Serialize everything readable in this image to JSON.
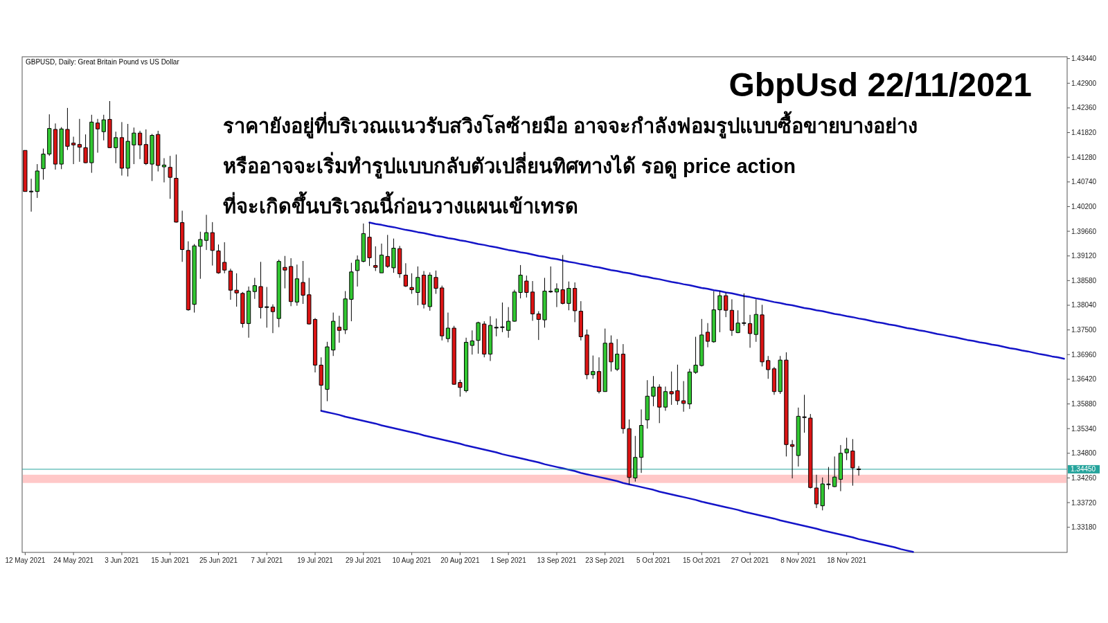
{
  "chart_data": {
    "type": "candlestick",
    "title": "GbpUsd 22/11/2021",
    "subtitle": "ราคายังอยู่ที่บริเวณแนวรับสวิงโลซ้ายมือ อาจจะกำลังฟอมรูปแบบซื้อขายบางอย่าง\nหรืออาจจะเริ่มทำรูปแบบกลับตัวเปลี่ยนทิศทางได้ รอดู price action\nที่จะเกิดขึ้นบริเวณนี้ก่อนวางแผนเข้าเทรด",
    "annotations": [
      "GBPUSD, Daily:  Great Britain Pound vs US Dollar"
    ],
    "categories": [
      "12 May 2021",
      null,
      null,
      null,
      null,
      null,
      null,
      null,
      "24 May 2021",
      null,
      null,
      null,
      null,
      null,
      null,
      null,
      "3 Jun 2021",
      null,
      null,
      null,
      null,
      null,
      null,
      null,
      "15 Jun 2021",
      null,
      null,
      null,
      null,
      null,
      null,
      null,
      "25 Jun 2021",
      null,
      null,
      null,
      null,
      null,
      null,
      null,
      "7 Jul 2021",
      null,
      null,
      null,
      null,
      null,
      null,
      null,
      "19 Jul 2021",
      null,
      null,
      null,
      null,
      null,
      null,
      null,
      "29 Jul 2021",
      null,
      null,
      null,
      null,
      null,
      null,
      null,
      "10 Aug 2021",
      null,
      null,
      null,
      null,
      null,
      null,
      null,
      "20 Aug 2021",
      null,
      null,
      null,
      null,
      null,
      null,
      null,
      "1 Sep 2021",
      null,
      null,
      null,
      null,
      null,
      null,
      null,
      "13 Sep 2021",
      null,
      null,
      null,
      null,
      null,
      null,
      null,
      "23 Sep 2021",
      null,
      null,
      null,
      null,
      null,
      null,
      null,
      "5 Oct 2021",
      null,
      null,
      null,
      null,
      null,
      null,
      null,
      "15 Oct 2021",
      null,
      null,
      null,
      null,
      null,
      null,
      null,
      "27 Oct 2021",
      null,
      null,
      null,
      null,
      null,
      null,
      null,
      "8 Nov 2021",
      null,
      null,
      null,
      null,
      null,
      null,
      null,
      "18 Nov 2021",
      null,
      null,
      null,
      null,
      null,
      null,
      null,
      null,
      null,
      null,
      null,
      null,
      null,
      null,
      null,
      null,
      null,
      null,
      null,
      null,
      null,
      null,
      null,
      null,
      null,
      null,
      null,
      null,
      null,
      null,
      null,
      null,
      null,
      null,
      null,
      null
    ],
    "ohlc": [
      [
        1.4143,
        1.4143,
        1.4053,
        1.4053
      ],
      [
        1.4053,
        1.4081,
        1.4009,
        1.4053
      ],
      [
        1.4053,
        1.4113,
        1.4039,
        1.4098
      ],
      [
        1.4103,
        1.4147,
        1.4079,
        1.4135
      ],
      [
        1.4135,
        1.4222,
        1.4131,
        1.4191
      ],
      [
        1.4189,
        1.4202,
        1.4101,
        1.4113
      ],
      [
        1.4113,
        1.4194,
        1.4102,
        1.419
      ],
      [
        1.4189,
        1.4236,
        1.4144,
        1.4152
      ],
      [
        1.4159,
        1.4173,
        1.4113,
        1.4155
      ],
      [
        1.4156,
        1.4212,
        1.4118,
        1.415
      ],
      [
        1.4149,
        1.4178,
        1.4115,
        1.4116
      ],
      [
        1.4116,
        1.4221,
        1.4094,
        1.4205
      ],
      [
        1.4203,
        1.4212,
        1.4138,
        1.419
      ],
      [
        1.4184,
        1.4221,
        1.4165,
        1.421
      ],
      [
        1.4211,
        1.4251,
        1.4148,
        1.4149
      ],
      [
        1.4149,
        1.4184,
        1.4115,
        1.4171
      ],
      [
        1.4171,
        1.4205,
        1.4088,
        1.4104
      ],
      [
        1.4104,
        1.4201,
        1.4086,
        1.4163
      ],
      [
        1.4155,
        1.4193,
        1.4113,
        1.4181
      ],
      [
        1.4181,
        1.4186,
        1.4124,
        1.4155
      ],
      [
        1.4156,
        1.4189,
        1.4111,
        1.4114
      ],
      [
        1.4113,
        1.4179,
        1.4076,
        1.4176
      ],
      [
        1.4178,
        1.4186,
        1.4097,
        1.411
      ],
      [
        1.4107,
        1.4126,
        1.4073,
        1.4111
      ],
      [
        1.4106,
        1.4131,
        1.4037,
        1.4084
      ],
      [
        1.4082,
        1.4134,
        1.3985,
        1.3986
      ],
      [
        1.3985,
        1.4011,
        1.3899,
        1.3926
      ],
      [
        1.3924,
        1.3944,
        1.3792,
        1.3794
      ],
      [
        1.3806,
        1.3938,
        1.3788,
        1.3934
      ],
      [
        1.3933,
        1.3965,
        1.3862,
        1.3948
      ],
      [
        1.3946,
        1.4002,
        1.3925,
        1.3963
      ],
      [
        1.3963,
        1.3986,
        1.3891,
        1.3924
      ],
      [
        1.3923,
        1.3937,
        1.3873,
        1.3875
      ],
      [
        1.3898,
        1.3942,
        1.3874,
        1.3881
      ],
      [
        1.3879,
        1.3884,
        1.3816,
        1.3837
      ],
      [
        1.3837,
        1.3874,
        1.3801,
        1.3831
      ],
      [
        1.383,
        1.3833,
        1.3755,
        1.3764
      ],
      [
        1.3764,
        1.3845,
        1.3733,
        1.3835
      ],
      [
        1.3834,
        1.3864,
        1.3818,
        1.3847
      ],
      [
        1.3845,
        1.3899,
        1.3775,
        1.3799
      ],
      [
        1.38,
        1.3844,
        1.3755,
        1.38
      ],
      [
        1.38,
        1.3806,
        1.3743,
        1.379
      ],
      [
        1.3775,
        1.3904,
        1.3756,
        1.39
      ],
      [
        1.3887,
        1.3912,
        1.3841,
        1.3881
      ],
      [
        1.3889,
        1.3907,
        1.3802,
        1.3812
      ],
      [
        1.3811,
        1.3893,
        1.3803,
        1.3862
      ],
      [
        1.3854,
        1.3901,
        1.3807,
        1.3826
      ],
      [
        1.3827,
        1.3864,
        1.3762,
        1.3763
      ],
      [
        1.3773,
        1.3776,
        1.3657,
        1.3673
      ],
      [
        1.3673,
        1.369,
        1.3573,
        1.3629
      ],
      [
        1.362,
        1.3724,
        1.3594,
        1.3713
      ],
      [
        1.3706,
        1.3788,
        1.3693,
        1.3769
      ],
      [
        1.3756,
        1.3781,
        1.3722,
        1.3749
      ],
      [
        1.375,
        1.3835,
        1.3741,
        1.3818
      ],
      [
        1.3817,
        1.3897,
        1.3769,
        1.3877
      ],
      [
        1.388,
        1.3913,
        1.3845,
        1.3903
      ],
      [
        1.39,
        1.3983,
        1.3898,
        1.3961
      ],
      [
        1.3953,
        1.3986,
        1.389,
        1.3908
      ],
      [
        1.3891,
        1.3933,
        1.3879,
        1.3887
      ],
      [
        1.3875,
        1.3939,
        1.3875,
        1.3914
      ],
      [
        1.3911,
        1.3958,
        1.3886,
        1.3889
      ],
      [
        1.3886,
        1.395,
        1.3875,
        1.3929
      ],
      [
        1.3928,
        1.3934,
        1.3864,
        1.3873
      ],
      [
        1.387,
        1.3896,
        1.3844,
        1.3846
      ],
      [
        1.3843,
        1.3874,
        1.3829,
        1.3838
      ],
      [
        1.3832,
        1.3889,
        1.3804,
        1.3865
      ],
      [
        1.387,
        1.3879,
        1.3797,
        1.3806
      ],
      [
        1.3801,
        1.3876,
        1.3792,
        1.387
      ],
      [
        1.3865,
        1.388,
        1.3829,
        1.3841
      ],
      [
        1.3842,
        1.3847,
        1.3727,
        1.3737
      ],
      [
        1.3731,
        1.3788,
        1.3723,
        1.3754
      ],
      [
        1.3754,
        1.3759,
        1.363,
        1.3631
      ],
      [
        1.3635,
        1.3641,
        1.3604,
        1.3624
      ],
      [
        1.3617,
        1.3733,
        1.3613,
        1.3723
      ],
      [
        1.3716,
        1.3749,
        1.3696,
        1.3726
      ],
      [
        1.3727,
        1.3768,
        1.3698,
        1.3766
      ],
      [
        1.3763,
        1.3769,
        1.369,
        1.3697
      ],
      [
        1.3697,
        1.378,
        1.3682,
        1.376
      ],
      [
        1.3755,
        1.3775,
        1.3736,
        1.3755
      ],
      [
        1.3756,
        1.381,
        1.3745,
        1.3756
      ],
      [
        1.3749,
        1.38,
        1.3733,
        1.3769
      ],
      [
        1.3769,
        1.3838,
        1.3768,
        1.3833
      ],
      [
        1.3832,
        1.3892,
        1.3819,
        1.387
      ],
      [
        1.3857,
        1.3869,
        1.3821,
        1.3832
      ],
      [
        1.3833,
        1.3857,
        1.377,
        1.3785
      ],
      [
        1.3785,
        1.3791,
        1.3728,
        1.3773
      ],
      [
        1.3772,
        1.3864,
        1.3755,
        1.3835
      ],
      [
        1.3834,
        1.3889,
        1.3831,
        1.3834
      ],
      [
        1.3833,
        1.3852,
        1.38,
        1.384
      ],
      [
        1.3838,
        1.3914,
        1.3806,
        1.3808
      ],
      [
        1.3808,
        1.3856,
        1.3793,
        1.3841
      ],
      [
        1.3841,
        1.3854,
        1.3767,
        1.3792
      ],
      [
        1.3791,
        1.3813,
        1.3727,
        1.3735
      ],
      [
        1.3739,
        1.3751,
        1.3642,
        1.3652
      ],
      [
        1.3652,
        1.3694,
        1.3643,
        1.3659
      ],
      [
        1.3659,
        1.369,
        1.3611,
        1.3615
      ],
      [
        1.3615,
        1.3753,
        1.3615,
        1.3721
      ],
      [
        1.3721,
        1.3738,
        1.3659,
        1.368
      ],
      [
        1.3664,
        1.373,
        1.366,
        1.3697
      ],
      [
        1.3697,
        1.3719,
        1.3523,
        1.3534
      ],
      [
        1.3534,
        1.3554,
        1.3412,
        1.3427
      ],
      [
        1.3426,
        1.3518,
        1.3418,
        1.3471
      ],
      [
        1.3471,
        1.3576,
        1.3437,
        1.3541
      ],
      [
        1.3553,
        1.364,
        1.3534,
        1.3605
      ],
      [
        1.3605,
        1.3649,
        1.3583,
        1.3625
      ],
      [
        1.3625,
        1.3631,
        1.3546,
        1.3581
      ],
      [
        1.3581,
        1.3626,
        1.3573,
        1.3615
      ],
      [
        1.3615,
        1.3659,
        1.3586,
        1.361
      ],
      [
        1.3617,
        1.3674,
        1.3586,
        1.3595
      ],
      [
        1.3595,
        1.3638,
        1.3571,
        1.3589
      ],
      [
        1.3588,
        1.3665,
        1.3577,
        1.3658
      ],
      [
        1.3657,
        1.3735,
        1.3654,
        1.3673
      ],
      [
        1.3672,
        1.3774,
        1.367,
        1.3739
      ],
      [
        1.3745,
        1.3765,
        1.3712,
        1.3725
      ],
      [
        1.3724,
        1.3835,
        1.3722,
        1.3794
      ],
      [
        1.3794,
        1.3835,
        1.3745,
        1.3825
      ],
      [
        1.3825,
        1.3832,
        1.3778,
        1.3793
      ],
      [
        1.3793,
        1.3817,
        1.3737,
        1.3749
      ],
      [
        1.3744,
        1.3793,
        1.3743,
        1.3765
      ],
      [
        1.3765,
        1.383,
        1.3759,
        1.3765
      ],
      [
        1.3764,
        1.3783,
        1.3711,
        1.3742
      ],
      [
        1.374,
        1.3817,
        1.3724,
        1.3784
      ],
      [
        1.3783,
        1.3805,
        1.367,
        1.368
      ],
      [
        1.3683,
        1.3693,
        1.3643,
        1.3663
      ],
      [
        1.3665,
        1.3669,
        1.3608,
        1.3615
      ],
      [
        1.3615,
        1.3693,
        1.361,
        1.3684
      ],
      [
        1.3684,
        1.3701,
        1.3473,
        1.3499
      ],
      [
        1.3499,
        1.3509,
        1.3425,
        1.3495
      ],
      [
        1.3475,
        1.358,
        1.3451,
        1.3561
      ],
      [
        1.3559,
        1.3608,
        1.3525,
        1.3559
      ],
      [
        1.3557,
        1.3566,
        1.3403,
        1.3405
      ],
      [
        1.3404,
        1.3433,
        1.336,
        1.3369
      ],
      [
        1.3365,
        1.3427,
        1.3355,
        1.3413
      ],
      [
        1.3412,
        1.345,
        1.3401,
        1.3412
      ],
      [
        1.3407,
        1.3473,
        1.3406,
        1.3428
      ],
      [
        1.3423,
        1.3498,
        1.3397,
        1.348
      ],
      [
        1.3481,
        1.3514,
        1.3465,
        1.3489
      ],
      [
        1.3485,
        1.3511,
        1.3409,
        1.3448
      ],
      [
        1.3445,
        1.3452,
        1.3431,
        1.3445
      ],
      null,
      null,
      null,
      null,
      null,
      null,
      null,
      null,
      null,
      null,
      null,
      null,
      null,
      null,
      null,
      null,
      null,
      null,
      null,
      null,
      null,
      null,
      null,
      null,
      null,
      null,
      null,
      null,
      null,
      null,
      null,
      null,
      null,
      null
    ],
    "colors": [
      "#dc1414",
      "#000000",
      "#32c832",
      "#32c832",
      "#32c832",
      "#dc1414",
      "#32c832",
      "#dc1414",
      "#dc1414",
      "#dc1414",
      "#dc1414",
      "#32c832",
      "#dc1414",
      "#32c832",
      "#dc1414",
      "#32c832",
      "#dc1414",
      "#32c832",
      "#32c832",
      "#dc1414",
      "#dc1414",
      "#32c832",
      "#dc1414",
      "#32c832",
      "#dc1414",
      "#dc1414",
      "#dc1414",
      "#dc1414",
      "#32c832",
      "#32c832",
      "#32c832",
      "#dc1414",
      "#dc1414",
      "#dc1414",
      "#dc1414",
      "#dc1414",
      "#dc1414",
      "#32c832",
      "#32c832",
      "#dc1414",
      "#000000",
      "#dc1414",
      "#32c832",
      "#dc1414",
      "#dc1414",
      "#32c832",
      "#dc1414",
      "#dc1414",
      "#dc1414",
      "#dc1414",
      "#32c832",
      "#32c832",
      "#dc1414",
      "#32c832",
      "#32c832",
      "#32c832",
      "#32c832",
      "#dc1414",
      "#dc1414",
      "#32c832",
      "#dc1414",
      "#32c832",
      "#dc1414",
      "#dc1414",
      "#dc1414",
      "#32c832",
      "#dc1414",
      "#32c832",
      "#dc1414",
      "#dc1414",
      "#32c832",
      "#dc1414",
      "#dc1414",
      "#32c832",
      "#32c832",
      "#32c832",
      "#dc1414",
      "#32c832",
      "#000000",
      "#000000",
      "#32c832",
      "#32c832",
      "#32c832",
      "#dc1414",
      "#dc1414",
      "#dc1414",
      "#32c832",
      "#000000",
      "#32c832",
      "#dc1414",
      "#32c832",
      "#dc1414",
      "#dc1414",
      "#dc1414",
      "#32c832",
      "#dc1414",
      "#32c832",
      "#dc1414",
      "#32c832",
      "#dc1414",
      "#dc1414",
      "#32c832",
      "#32c832",
      "#32c832",
      "#32c832",
      "#dc1414",
      "#32c832",
      "#dc1414",
      "#dc1414",
      "#dc1414",
      "#32c832",
      "#32c832",
      "#32c832",
      "#dc1414",
      "#32c832",
      "#32c832",
      "#dc1414",
      "#dc1414",
      "#32c832",
      "#000000",
      "#dc1414",
      "#32c832",
      "#dc1414",
      "#dc1414",
      "#dc1414",
      "#32c832",
      "#dc1414",
      "#dc1414",
      "#32c832",
      "#000000",
      "#dc1414",
      "#dc1414",
      "#32c832",
      "#000000",
      "#32c832",
      "#32c832",
      "#32c832",
      "#dc1414",
      "#000000",
      null,
      null,
      null,
      null,
      null,
      null,
      null,
      null,
      null,
      null,
      null,
      null,
      null,
      null,
      null,
      null,
      null,
      null,
      null,
      null,
      null,
      null,
      null,
      null,
      null,
      null,
      null,
      null,
      null,
      null,
      null,
      null,
      null,
      null
    ],
    "series": [
      {
        "type": "line",
        "color": "#1414c8",
        "values": [
          null,
          null,
          null,
          null,
          null,
          null,
          null,
          null,
          null,
          null,
          null,
          null,
          null,
          null,
          null,
          null,
          null,
          null,
          null,
          null,
          null,
          null,
          null,
          null,
          null,
          null,
          null,
          null,
          null,
          null,
          null,
          null,
          null,
          null,
          null,
          null,
          null,
          null,
          null,
          null,
          null,
          null,
          null,
          null,
          null,
          null,
          null,
          null,
          null,
          null,
          null,
          null,
          null,
          null,
          null,
          null,
          null,
          1.3985,
          1.3982,
          1.398,
          1.3977,
          1.3975,
          1.3972,
          1.3969,
          1.3967,
          1.3964,
          1.3962,
          1.3959,
          1.3956,
          1.3954,
          1.3951,
          1.3949,
          1.3946,
          1.3944,
          1.3941,
          1.3938,
          1.3936,
          1.3933,
          1.3931,
          1.3928,
          1.3925,
          1.3923,
          1.392,
          1.3918,
          1.3915,
          1.3912,
          1.391,
          1.3907,
          1.3905,
          1.3902,
          1.3899,
          1.3897,
          1.3894,
          1.3892,
          1.3889,
          1.3887,
          1.3884,
          1.3881,
          1.3879,
          1.3876,
          1.3874,
          1.3871,
          1.3868,
          1.3866,
          1.3863,
          1.3861,
          1.3858,
          1.3855,
          1.3853,
          1.385,
          1.3848,
          1.3845,
          1.3842,
          1.384,
          1.3837,
          1.3835,
          1.3832,
          1.383,
          1.3827,
          1.3824,
          1.3822,
          1.3819,
          1.3817,
          1.3814,
          1.3811,
          1.3809,
          1.3806,
          1.3804,
          1.3801,
          1.3798,
          1.3796,
          1.3793,
          1.3791,
          1.3788,
          1.3785,
          1.3783,
          1.378,
          1.3778,
          1.3775,
          1.3773,
          1.377,
          1.3767,
          1.3765,
          1.3762,
          1.376,
          1.3757,
          1.3754,
          1.3752,
          1.3749,
          1.3747,
          1.3744,
          1.3741,
          1.3739,
          1.3736,
          1.3734,
          1.3731,
          1.3728,
          1.3726,
          1.3723,
          1.3721,
          1.3718,
          1.3716,
          1.3713,
          1.371,
          1.3708,
          1.3705,
          1.3703,
          1.37,
          1.3697,
          1.3695,
          1.3692,
          1.369,
          1.3687
        ]
      },
      {
        "type": "line",
        "color": "#1414c8",
        "values": [
          null,
          null,
          null,
          null,
          null,
          null,
          null,
          null,
          null,
          null,
          null,
          null,
          null,
          null,
          null,
          null,
          null,
          null,
          null,
          null,
          null,
          null,
          null,
          null,
          null,
          null,
          null,
          null,
          null,
          null,
          null,
          null,
          null,
          null,
          null,
          null,
          null,
          null,
          null,
          null,
          null,
          null,
          null,
          null,
          null,
          null,
          null,
          null,
          null,
          1.3573,
          1.357,
          1.3567,
          1.3564,
          1.356,
          1.3557,
          1.3554,
          1.3551,
          1.3548,
          1.3545,
          1.3541,
          1.3538,
          1.3535,
          1.3532,
          1.3529,
          1.3526,
          1.3523,
          1.3519,
          1.3516,
          1.3513,
          1.351,
          1.3507,
          1.3504,
          1.3501,
          1.3497,
          1.3494,
          1.3491,
          1.3488,
          1.3485,
          1.3482,
          1.3478,
          1.3475,
          1.3472,
          1.3469,
          1.3466,
          1.3463,
          1.346,
          1.3456,
          1.3453,
          1.345,
          1.3447,
          1.3444,
          1.3441,
          1.3437,
          1.3434,
          1.3431,
          1.3428,
          1.3425,
          1.3422,
          1.3419,
          1.3415,
          1.3412,
          1.3409,
          1.3406,
          1.3403,
          1.34,
          1.3396,
          1.3393,
          1.339,
          1.3387,
          1.3384,
          1.3381,
          1.3378,
          1.3374,
          1.3371,
          1.3368,
          1.3365,
          1.3362,
          1.3359,
          1.3356,
          1.3352,
          1.3349,
          1.3346,
          1.3343,
          1.334,
          1.3337,
          1.3333,
          1.333,
          1.3327,
          1.3324,
          1.3321,
          1.3318,
          1.3315,
          1.3311,
          1.3308,
          1.3305,
          1.3302,
          1.3299,
          1.3296,
          1.3292,
          1.3289,
          1.3286,
          1.3283,
          1.328,
          1.3277,
          1.3274,
          1.327,
          1.3267,
          1.3264,
          null,
          null,
          null,
          null,
          null,
          null,
          null,
          null,
          null,
          null,
          null,
          null,
          null,
          null,
          null,
          null,
          null,
          null,
          null,
          null,
          null,
          null,
          null,
          null,
          null
        ]
      }
    ],
    "bands": [
      {
        "axis": "y",
        "from": 1.3415,
        "to": 1.3433,
        "color": "#ffc8c8"
      }
    ],
    "ref_lines": [
      {
        "axis": "y",
        "value": 1.3445,
        "label": "1.34450",
        "color": "#26a49c"
      }
    ],
    "ylim": [
      1.3263,
      1.4348
    ],
    "yticks": [
      {
        "value": 1.3318,
        "label": "1.33180"
      },
      {
        "value": 1.3372,
        "label": "1.33720"
      },
      {
        "value": 1.3426,
        "label": "1.34260"
      },
      {
        "value": 1.348,
        "label": "1.34800"
      },
      {
        "value": 1.3534,
        "label": "1.35340"
      },
      {
        "value": 1.3588,
        "label": "1.35880"
      },
      {
        "value": 1.3642,
        "label": "1.36420"
      },
      {
        "value": 1.3696,
        "label": "1.36960"
      },
      {
        "value": 1.375,
        "label": "1.37500"
      },
      {
        "value": 1.3804,
        "label": "1.38040"
      },
      {
        "value": 1.3858,
        "label": "1.38580"
      },
      {
        "value": 1.3912,
        "label": "1.39120"
      },
      {
        "value": 1.3966,
        "label": "1.39660"
      },
      {
        "value": 1.402,
        "label": "1.40200"
      },
      {
        "value": 1.4074,
        "label": "1.40740"
      },
      {
        "value": 1.4128,
        "label": "1.41280"
      },
      {
        "value": 1.4182,
        "label": "1.41820"
      },
      {
        "value": 1.4236,
        "label": "1.42360"
      },
      {
        "value": 1.429,
        "label": "1.42900"
      },
      {
        "value": 1.4344,
        "label": "1.43440"
      }
    ]
  }
}
